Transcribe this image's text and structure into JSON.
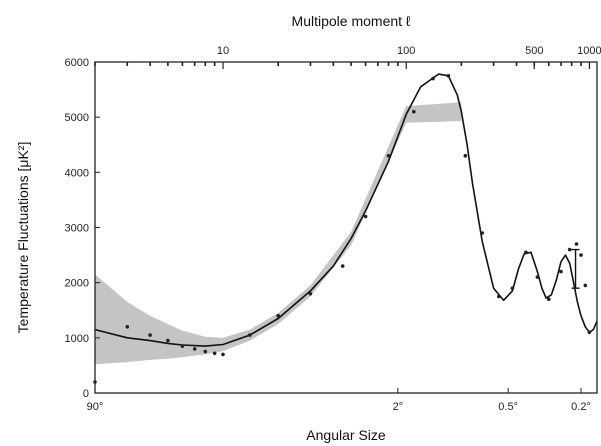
{
  "chart_data": {
    "type": "line",
    "title": "",
    "xlabel": "Angular Size",
    "x2label": "Multipole moment  ℓ",
    "ylabel": "Temperature Fluctuations [μK²]",
    "x_scale": "log",
    "xlim": [
      2,
      1100
    ],
    "ylim": [
      0,
      6000
    ],
    "y_ticks": [
      0,
      1000,
      2000,
      3000,
      4000,
      5000,
      6000
    ],
    "y_tick_labels": [
      "0",
      "1000",
      "2000",
      "3000",
      "4000",
      "5000",
      "6000"
    ],
    "x_bottom_ticks": [
      {
        "l": 2,
        "label": "90°"
      },
      {
        "l": 90,
        "label": "2°"
      },
      {
        "l": 360,
        "label": "0.5°"
      },
      {
        "l": 900,
        "label": "0.2°"
      }
    ],
    "x_top_ticks": [
      {
        "l": 10,
        "label": "10"
      },
      {
        "l": 100,
        "label": "100"
      },
      {
        "l": 500,
        "label": "500"
      },
      {
        "l": 1000,
        "label": "1000"
      }
    ],
    "model_curve": {
      "x": [
        2,
        3,
        4,
        5,
        6,
        8,
        10,
        14,
        20,
        30,
        40,
        50,
        60,
        80,
        100,
        120,
        150,
        170,
        190,
        200,
        215,
        230,
        260,
        300,
        340,
        380,
        410,
        440,
        480,
        520,
        550,
        580,
        620,
        660,
        700,
        740,
        780,
        820,
        860,
        900,
        950,
        1000,
        1050,
        1100
      ],
      "y": [
        1150,
        1000,
        950,
        900,
        870,
        850,
        880,
        1050,
        1350,
        1850,
        2300,
        2800,
        3300,
        4200,
        5050,
        5550,
        5780,
        5750,
        5400,
        5100,
        4500,
        3800,
        2750,
        1900,
        1680,
        1850,
        2250,
        2520,
        2550,
        2200,
        1900,
        1720,
        1780,
        2050,
        2380,
        2500,
        2350,
        2000,
        1650,
        1400,
        1200,
        1100,
        1150,
        1300
      ]
    },
    "cosmic_variance_band": {
      "x": [
        2,
        3,
        4,
        5,
        6,
        8,
        10,
        14,
        20,
        30,
        50,
        100,
        200
      ],
      "upper": [
        2150,
        1650,
        1400,
        1250,
        1130,
        1020,
        1000,
        1150,
        1450,
        1950,
        2920,
        5200,
        5270
      ],
      "lower": [
        520,
        560,
        600,
        620,
        650,
        700,
        760,
        950,
        1250,
        1750,
        2680,
        4900,
        4930
      ]
    },
    "series": [
      {
        "x": [
          2,
          3,
          4,
          5,
          6,
          7,
          8,
          9,
          10,
          14,
          20,
          30,
          45,
          60,
          80,
          110,
          140,
          170,
          210,
          260,
          320,
          380,
          450,
          520,
          600,
          700,
          780,
          850,
          900,
          950,
          1000
        ],
        "y": [
          200,
          1200,
          1050,
          950,
          850,
          800,
          750,
          720,
          700,
          1050,
          1400,
          1800,
          2300,
          3200,
          4300,
          5100,
          5700,
          5750,
          4300,
          2900,
          1750,
          1900,
          2550,
          2100,
          1700,
          2200,
          2600,
          2700,
          2500,
          1950,
          1100
        ]
      }
    ],
    "error_bar": {
      "x": 840,
      "low": 1900,
      "high": 2600
    },
    "grid": false
  }
}
